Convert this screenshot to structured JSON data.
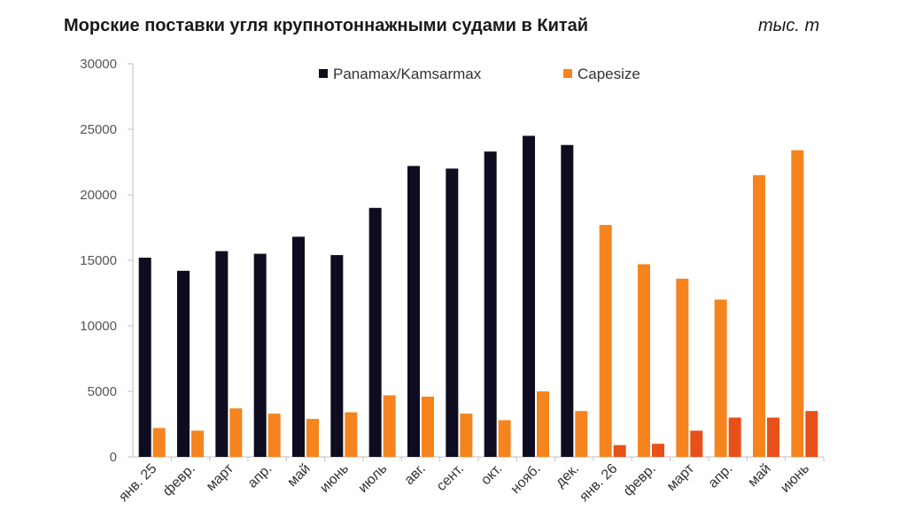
{
  "header": {
    "title": "Морские поставки угля крупнотоннажными судами в Китай",
    "unit": "тыс. т"
  },
  "chart_data": {
    "type": "bar",
    "title": "Морские поставки угля крупнотоннажными судами в Китай",
    "ylabel": "тыс. т",
    "ylim": [
      0,
      30000
    ],
    "yticks": [
      0,
      5000,
      10000,
      15000,
      20000,
      25000,
      30000
    ],
    "grid": false,
    "legend_position": "top",
    "groups": [
      {
        "categories": [
          "янв. 25",
          "февр.",
          "март",
          "апр.",
          "май",
          "июнь",
          "июль",
          "авг.",
          "сент.",
          "окт.",
          "нояб.",
          "дек."
        ],
        "series": [
          {
            "name": "Panamax/Kamsarmax",
            "color": "#0d0d1f",
            "values": [
              15200,
              14200,
              15700,
              15500,
              16800,
              15400,
              19000,
              22200,
              22000,
              23300,
              24500,
              23800
            ]
          },
          {
            "name": "Capesize",
            "color": "#f5841f",
            "values": [
              2200,
              2000,
              3700,
              3300,
              2900,
              3400,
              4700,
              4600,
              3300,
              2800,
              5000,
              3500
            ]
          }
        ]
      },
      {
        "categories": [
          "янв. 26",
          "февр.",
          "март",
          "апр.",
          "май",
          "июнь"
        ],
        "series": [
          {
            "name": "Panamax/Kamsarmax",
            "color": "#f5841f",
            "values": [
              17700,
              14700,
              13600,
              12000,
              21500,
              23400
            ]
          },
          {
            "name": "Capesize",
            "color": "#e8501a",
            "values": [
              900,
              1000,
              2000,
              3000,
              3000,
              3500
            ]
          }
        ]
      }
    ],
    "legend": [
      {
        "name": "Panamax/Kamsarmax",
        "color": "#0d0d1f"
      },
      {
        "name": "Capesize",
        "color": "#f5841f"
      }
    ]
  }
}
